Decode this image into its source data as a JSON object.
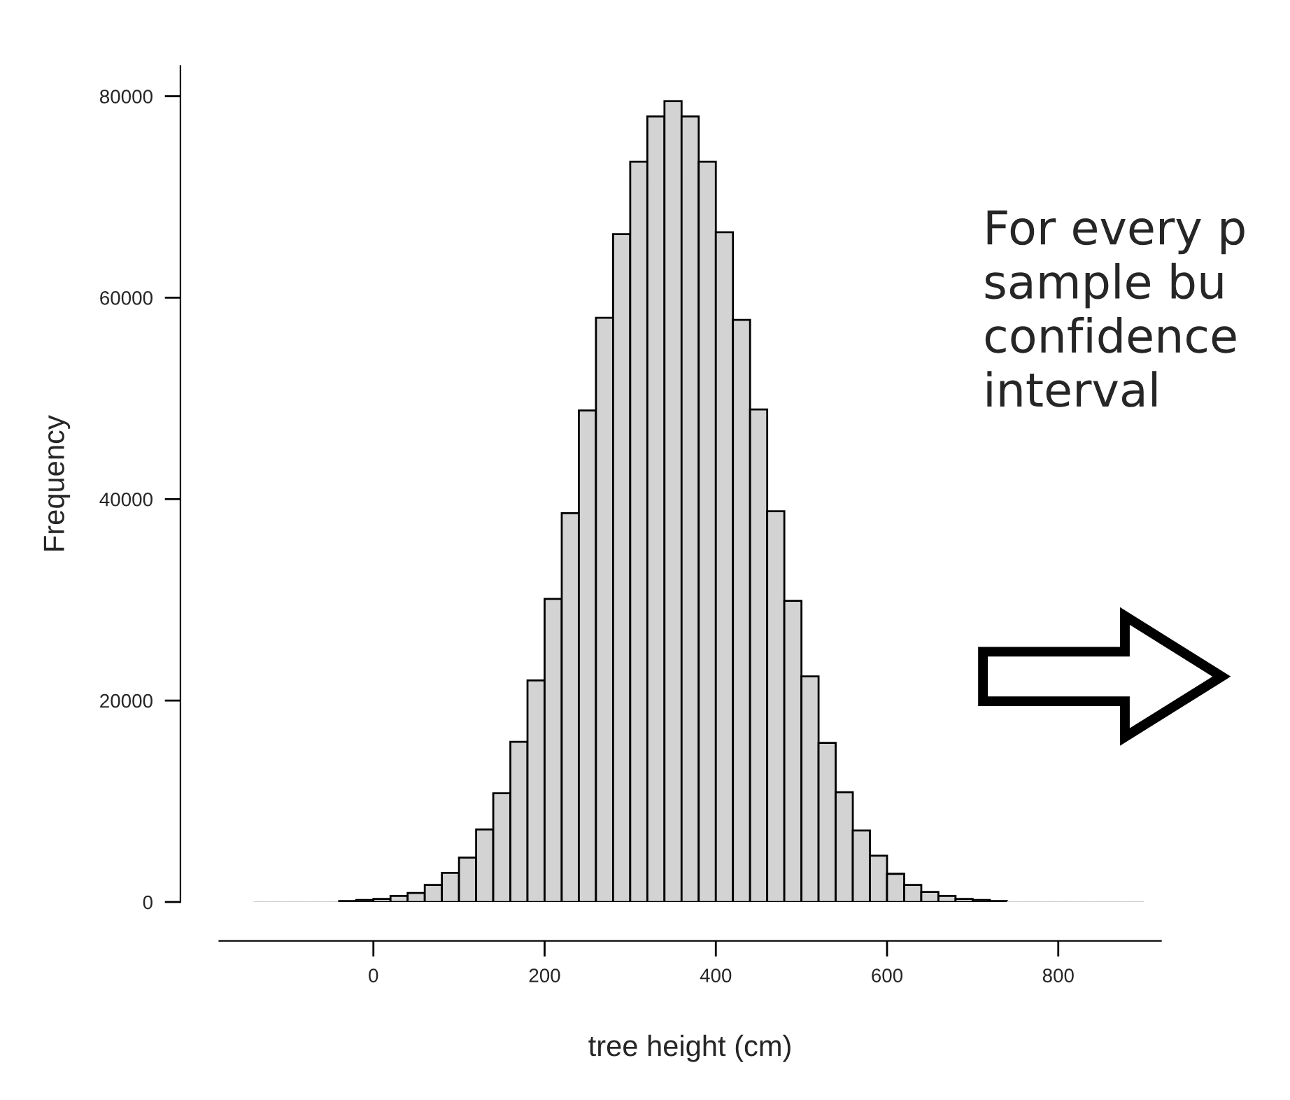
{
  "chart_data": {
    "type": "histogram",
    "xlabel": "tree height (cm)",
    "ylabel": "Frequency",
    "bins": [
      -140,
      -120,
      -100,
      -80,
      -60,
      -40,
      -20,
      0,
      20,
      40,
      60,
      80,
      100,
      120,
      140,
      160,
      180,
      200,
      220,
      240,
      260,
      280,
      300,
      320,
      340,
      360,
      380,
      400,
      420,
      440,
      460,
      480,
      500,
      520,
      540,
      560,
      580,
      600,
      620,
      640,
      660,
      680,
      700,
      720,
      740,
      760,
      780,
      800,
      820,
      840,
      860,
      880,
      900
    ],
    "values": [
      0,
      0,
      0,
      0,
      0,
      100,
      200,
      300,
      600,
      900,
      1700,
      2900,
      4400,
      7200,
      10800,
      15900,
      22000,
      30100,
      38600,
      48800,
      58000,
      66300,
      73500,
      78000,
      79500,
      78000,
      73500,
      66500,
      57800,
      48900,
      38800,
      29900,
      22400,
      15800,
      10900,
      7100,
      4600,
      2800,
      1700,
      1000,
      600,
      300,
      200,
      100,
      0,
      0,
      0,
      0,
      0,
      0,
      0,
      0
    ],
    "color": "#d3d3d3",
    "xlim": [
      -180,
      920
    ],
    "ylim": [
      0,
      83000
    ],
    "xticks": [
      0,
      200,
      400,
      600,
      800
    ],
    "yticks": [
      0,
      20000,
      40000,
      60000,
      80000
    ],
    "grid": false,
    "annotations": [
      "For every p\nsample bu\nconfidence\ninterval"
    ]
  }
}
